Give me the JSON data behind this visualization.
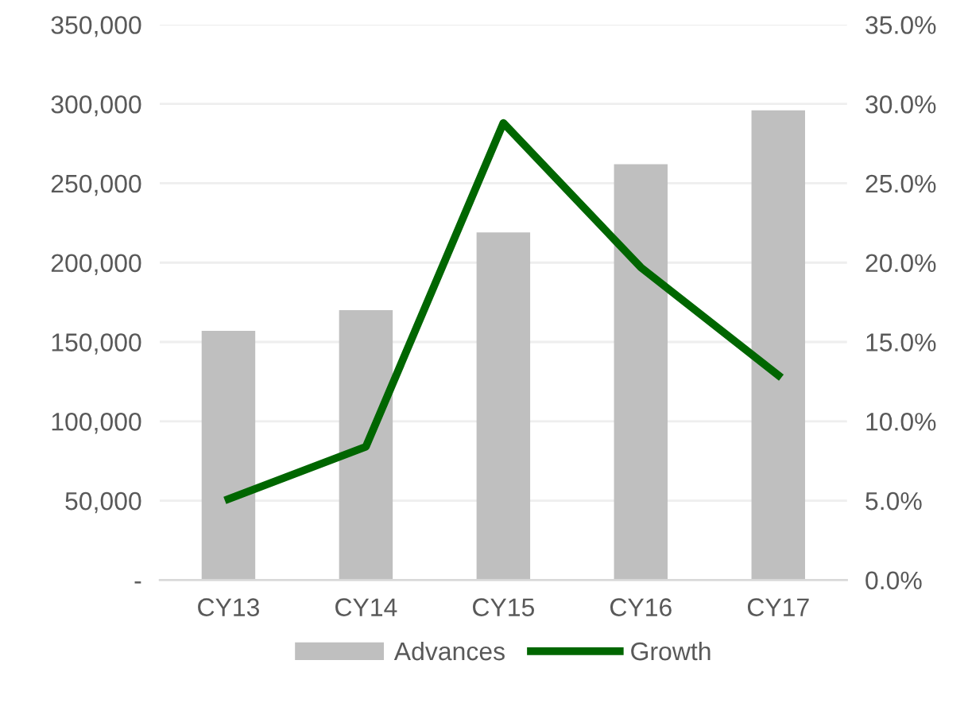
{
  "chart_data": {
    "type": "bar",
    "categories": [
      "CY13",
      "CY14",
      "CY15",
      "CY16",
      "CY17"
    ],
    "series": [
      {
        "name": "Advances",
        "color": "#bfbfbf",
        "values": [
          157000,
          170000,
          219000,
          262000,
          296000
        ]
      },
      {
        "name": "Growth",
        "type": "line",
        "axis": "y2",
        "color": "#006600",
        "values": [
          5.1,
          8.4,
          28.8,
          19.7,
          12.9
        ]
      }
    ],
    "ylim": [
      0,
      350000
    ],
    "yticks": [
      {
        "value": 0,
        "label": "-"
      },
      {
        "value": 50000,
        "label": "50,000"
      },
      {
        "value": 100000,
        "label": "100,000"
      },
      {
        "value": 150000,
        "label": "150,000"
      },
      {
        "value": 200000,
        "label": "200,000"
      },
      {
        "value": 250000,
        "label": "250,000"
      },
      {
        "value": 300000,
        "label": "300,000"
      },
      {
        "value": 350000,
        "label": "350,000"
      }
    ],
    "y2lim": [
      0,
      35
    ],
    "y2ticks": [
      {
        "value": 0,
        "label": "0.0%"
      },
      {
        "value": 5,
        "label": "5.0%"
      },
      {
        "value": 10,
        "label": "10.0%"
      },
      {
        "value": 15,
        "label": "15.0%"
      },
      {
        "value": 20,
        "label": "20.0%"
      },
      {
        "value": 25,
        "label": "25.0%"
      },
      {
        "value": 30,
        "label": "30.0%"
      },
      {
        "value": 35,
        "label": "35.0%"
      }
    ],
    "grid": "y",
    "legend": "bottom",
    "marker": "none",
    "line_style": "solid"
  }
}
